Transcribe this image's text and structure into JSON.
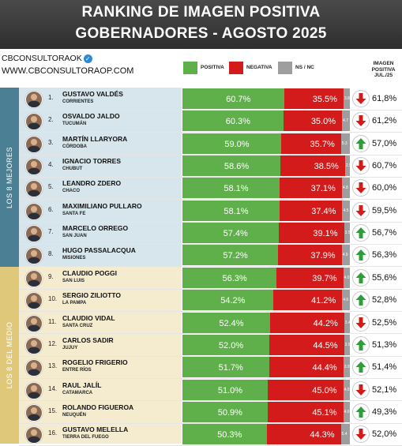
{
  "header": {
    "title_line1": "RANKING DE IMAGEN POSITIVA",
    "title_line2": "GOBERNADORES - AGOSTO 2025"
  },
  "brand": {
    "handle": "CBCONSULTORAOK",
    "url": "WWW.CBCONSULTORAOP.COM"
  },
  "colors": {
    "positive": "#5fb04a",
    "negative": "#d31b1b",
    "ns": "#9e9e9e",
    "top8": "#4a7f94",
    "mid8": "#e0c87a",
    "up_arrow": "#2e9d3a",
    "down_arrow": "#d31b1b"
  },
  "chart_data": {
    "type": "bar",
    "title": "RANKING DE IMAGEN POSITIVA GOBERNADORES - AGOSTO 2025",
    "legend": [
      "POSITIVA",
      "NEGATIVA",
      "NS / NC"
    ],
    "column_header": [
      "IMAGEN",
      "POSITIVA",
      "JUL./25"
    ],
    "groups": [
      "LOS 8 MEJORES",
      "LOS 8 DEL MEDIO"
    ],
    "rows": [
      {
        "rank": "1.",
        "name": "GUSTAVO VALDÉS",
        "province": "CORRIENTES",
        "positive": 60.7,
        "negative": 35.5,
        "ns": 3.8,
        "positive_label": "60.7%",
        "negative_label": "35.5%",
        "ns_label": "3.8",
        "trend": "down",
        "prev": "61,8%"
      },
      {
        "rank": "2.",
        "name": "OSVALDO JALDO",
        "province": "TUCUMÁN",
        "positive": 60.3,
        "negative": 35.0,
        "ns": 4.7,
        "positive_label": "60.3%",
        "negative_label": "35.0%",
        "ns_label": "4.7",
        "trend": "down",
        "prev": "61,2%"
      },
      {
        "rank": "3.",
        "name": "MARTÍN LLARYORA",
        "province": "CÓRDOBA",
        "positive": 59.0,
        "negative": 35.7,
        "ns": 5.3,
        "positive_label": "59.0%",
        "negative_label": "35.7%",
        "ns_label": "5.3",
        "trend": "up",
        "prev": "57,0%"
      },
      {
        "rank": "4.",
        "name": "IGNACIO TORRES",
        "province": "CHUBUT",
        "positive": 58.6,
        "negative": 38.5,
        "ns": 2.9,
        "positive_label": "58.6%",
        "negative_label": "38.5%",
        "ns_label": "2.9",
        "trend": "down",
        "prev": "60,7%"
      },
      {
        "rank": "5.",
        "name": "LEANDRO ZDERO",
        "province": "CHACO",
        "positive": 58.1,
        "negative": 37.1,
        "ns": 4.8,
        "positive_label": "58.1%",
        "negative_label": "37.1%",
        "ns_label": "4.8",
        "trend": "down",
        "prev": "60,0%"
      },
      {
        "rank": "6.",
        "name": "MAXIMILIANO PULLARO",
        "province": "SANTA FE",
        "positive": 58.1,
        "negative": 37.4,
        "ns": 4.5,
        "positive_label": "58.1%",
        "negative_label": "37.4%",
        "ns_label": "4.5",
        "trend": "down",
        "prev": "59,5%"
      },
      {
        "rank": "7.",
        "name": "MARCELO ORREGO",
        "province": "SAN JUAN",
        "positive": 57.4,
        "negative": 39.1,
        "ns": 3.5,
        "positive_label": "57.4%",
        "negative_label": "39.1%",
        "ns_label": "3.5",
        "trend": "up",
        "prev": "56,7%"
      },
      {
        "rank": "8.",
        "name": "HUGO PASSALACQUA",
        "province": "MISIONES",
        "positive": 57.2,
        "negative": 37.9,
        "ns": 4.9,
        "positive_label": "57.2%",
        "negative_label": "37.9%",
        "ns_label": "4.9",
        "trend": "up",
        "prev": "56,3%"
      },
      {
        "rank": "9.",
        "name": "CLAUDIO POGGI",
        "province": "SAN LUIS",
        "positive": 56.3,
        "negative": 39.7,
        "ns": 4.0,
        "positive_label": "56.3%",
        "negative_label": "39.7%",
        "ns_label": "4.0",
        "trend": "up",
        "prev": "55,6%"
      },
      {
        "rank": "10.",
        "name": "SERGIO ZILIOTTO",
        "province": "LA PAMPA",
        "positive": 54.2,
        "negative": 41.2,
        "ns": 4.6,
        "positive_label": "54.2%",
        "negative_label": "41.2%",
        "ns_label": "4.6",
        "trend": "up",
        "prev": "52,8%"
      },
      {
        "rank": "11.",
        "name": "CLAUDIO VIDAL",
        "province": "SANTA CRUZ",
        "positive": 52.4,
        "negative": 44.2,
        "ns": 3.4,
        "positive_label": "52.4%",
        "negative_label": "44.2%",
        "ns_label": "3.4",
        "trend": "down",
        "prev": "52,5%"
      },
      {
        "rank": "12.",
        "name": "CARLOS SADIR",
        "province": "JUJUY",
        "positive": 52.0,
        "negative": 44.5,
        "ns": 3.5,
        "positive_label": "52.0%",
        "negative_label": "44.5%",
        "ns_label": "3.5",
        "trend": "up",
        "prev": "51,3%"
      },
      {
        "rank": "13.",
        "name": "ROGELIO FRIGERIO",
        "province": "ENTRE RÍOS",
        "positive": 51.7,
        "negative": 44.4,
        "ns": 3.9,
        "positive_label": "51.7%",
        "negative_label": "44.4%",
        "ns_label": "3.9",
        "trend": "up",
        "prev": "51,4%"
      },
      {
        "rank": "14.",
        "name": "RAUL JALÍL",
        "province": "CATAMARCA",
        "positive": 51.0,
        "negative": 45.0,
        "ns": 4.0,
        "positive_label": "51.0%",
        "negative_label": "45.0%",
        "ns_label": "4.0",
        "trend": "down",
        "prev": "52,1%"
      },
      {
        "rank": "15.",
        "name": "ROLANDO FIGUEROA",
        "province": "NEUQUÉN",
        "positive": 50.9,
        "negative": 45.1,
        "ns": 4.0,
        "positive_label": "50.9%",
        "negative_label": "45.1%",
        "ns_label": "4.0",
        "trend": "up",
        "prev": "49,3%"
      },
      {
        "rank": "16.",
        "name": "GUSTAVO MELELLA",
        "province": "TIERRA DEL FUEGO",
        "positive": 50.3,
        "negative": 44.3,
        "ns": 5.4,
        "positive_label": "50.3%",
        "negative_label": "44.3%",
        "ns_label": "5.4",
        "trend": "down",
        "prev": "52,0%"
      }
    ]
  }
}
